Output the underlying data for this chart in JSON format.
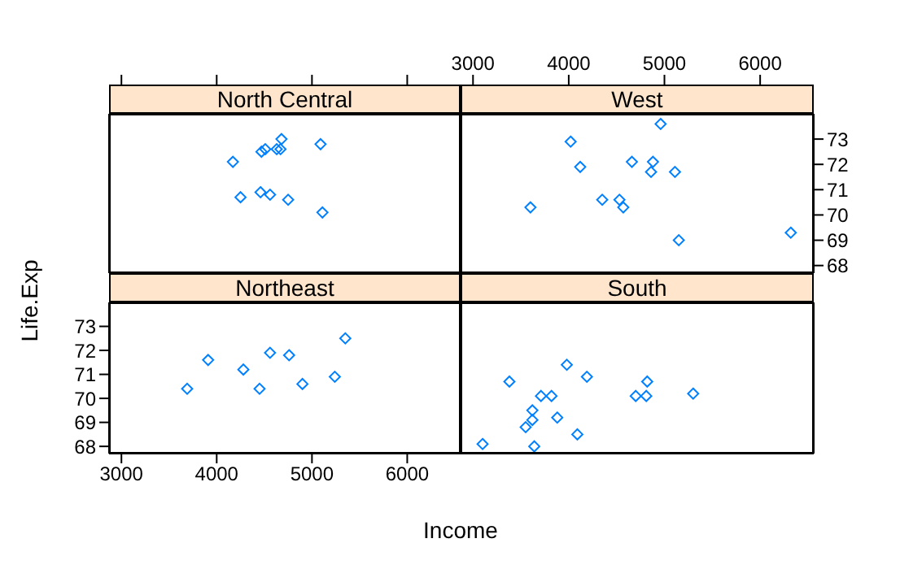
{
  "chart_data": [
    {
      "type": "scatter",
      "title": "North Central",
      "xlabel": "Income",
      "ylabel": "Life.Exp",
      "color": "#0080ff",
      "marker": "diamond",
      "xlim": [
        2870,
        6560
      ],
      "ylim": [
        67.7,
        74.0
      ],
      "xticks": [
        3000,
        4000,
        5000,
        6000
      ],
      "yticks": [
        68,
        69,
        70,
        71,
        72,
        73
      ],
      "tick_labels": false,
      "x": [
        5110,
        4460,
        4630,
        4670,
        4750,
        4680,
        4250,
        4510,
        5090,
        4560,
        4170,
        4470
      ],
      "values": [
        70.1,
        70.9,
        72.6,
        72.6,
        70.6,
        73.0,
        70.7,
        72.6,
        72.8,
        70.8,
        72.1,
        72.5
      ]
    },
    {
      "type": "scatter",
      "title": "West",
      "color": "#0080ff",
      "marker": "diamond",
      "xlim": [
        2870,
        6560
      ],
      "ylim": [
        67.7,
        74.0
      ],
      "xticks": [
        3000,
        4000,
        5000,
        6000
      ],
      "yticks": [
        68,
        69,
        70,
        71,
        72,
        73
      ],
      "x": [
        6320,
        4530,
        5110,
        4880,
        4960,
        4120,
        4350,
        5150,
        3600,
        4660,
        4020,
        4860,
        4570
      ],
      "values": [
        69.3,
        70.6,
        71.7,
        72.1,
        73.6,
        71.9,
        70.6,
        69.0,
        70.3,
        72.1,
        72.9,
        71.7,
        70.3
      ]
    },
    {
      "type": "scatter",
      "title": "Northeast",
      "color": "#0080ff",
      "marker": "diamond",
      "xlim": [
        2870,
        6560
      ],
      "ylim": [
        67.7,
        74.0
      ],
      "xticks": [
        3000,
        4000,
        5000,
        6000
      ],
      "yticks": [
        68,
        69,
        70,
        71,
        72,
        73
      ],
      "x": [
        5350,
        3690,
        4760,
        4280,
        5240,
        4900,
        4450,
        4560,
        3910
      ],
      "values": [
        72.5,
        70.4,
        71.8,
        71.2,
        70.9,
        70.6,
        70.4,
        71.9,
        71.6
      ]
    },
    {
      "type": "scatter",
      "title": "South",
      "color": "#0080ff",
      "marker": "diamond",
      "xlim": [
        2870,
        6560
      ],
      "ylim": [
        67.7,
        74.0
      ],
      "xticks": [
        3000,
        4000,
        5000,
        6000
      ],
      "yticks": [
        68,
        69,
        70,
        71,
        72,
        73
      ],
      "tick_labels": false,
      "x": [
        3620,
        3380,
        4810,
        4820,
        4090,
        3710,
        3550,
        5300,
        3100,
        3880,
        3980,
        3640,
        3820,
        4190,
        4700,
        3620
      ],
      "values": [
        69.1,
        70.7,
        70.1,
        70.7,
        68.5,
        70.1,
        68.8,
        70.2,
        68.1,
        69.2,
        71.4,
        68.0,
        70.1,
        70.9,
        70.1,
        69.5
      ]
    }
  ]
}
